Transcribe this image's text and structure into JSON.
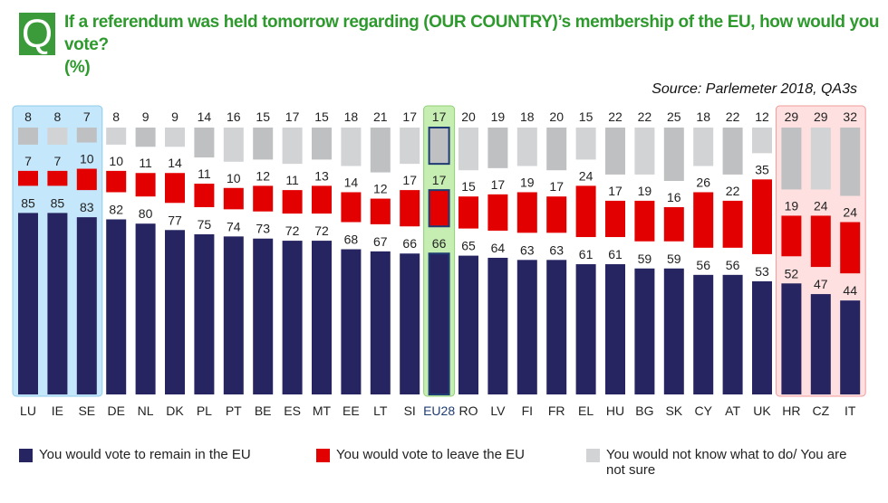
{
  "header": {
    "q_badge": "Q",
    "title_line1": "If a referendum was held tomorrow regarding (OUR COUNTRY)’s membership of the EU, how would you vote?",
    "title_line2": "(%)",
    "source": "Source: Parlemeter 2018, QA3s"
  },
  "colors": {
    "remain": "#262562",
    "leave": "#e30000",
    "unsure_dark": "#bfc0c2",
    "unsure_light": "#d1d3d4",
    "highlight_top": "#c4e7fb",
    "highlight_eu": "#c6edb2",
    "highlight_bottom": "#fde0df",
    "title_green": "#2e9a2e",
    "eu28_label": "#1f3b73"
  },
  "chart_data": {
    "type": "bar",
    "title": "If a referendum was held tomorrow regarding (OUR COUNTRY)’s membership of the EU, how would you vote? (%)",
    "xlabel": "",
    "ylabel": "%",
    "categories": [
      "LU",
      "IE",
      "SE",
      "DE",
      "NL",
      "DK",
      "PL",
      "PT",
      "BE",
      "ES",
      "MT",
      "EE",
      "LT",
      "SI",
      "EU28",
      "RO",
      "LV",
      "FI",
      "FR",
      "EL",
      "HU",
      "BG",
      "SK",
      "CY",
      "AT",
      "UK",
      "HR",
      "CZ",
      "IT"
    ],
    "series": [
      {
        "name": "You would vote to remain in the EU",
        "key": "remain",
        "values": [
          85,
          85,
          83,
          82,
          80,
          77,
          75,
          74,
          73,
          72,
          72,
          68,
          67,
          66,
          66,
          65,
          64,
          63,
          63,
          61,
          61,
          59,
          59,
          56,
          56,
          53,
          52,
          47,
          44
        ]
      },
      {
        "name": "You would vote to leave the EU",
        "key": "leave",
        "values": [
          7,
          7,
          10,
          10,
          11,
          14,
          11,
          10,
          12,
          11,
          13,
          14,
          12,
          17,
          17,
          15,
          17,
          19,
          17,
          24,
          17,
          19,
          16,
          26,
          22,
          35,
          19,
          24,
          24
        ]
      },
      {
        "name": "You would not know what to do/ You are not sure",
        "key": "unsure",
        "values": [
          8,
          8,
          7,
          8,
          9,
          9,
          14,
          16,
          15,
          17,
          15,
          18,
          21,
          17,
          17,
          20,
          19,
          18,
          20,
          15,
          22,
          22,
          25,
          18,
          22,
          12,
          29,
          29,
          32
        ]
      }
    ],
    "groups": [
      {
        "name": "top",
        "categories": [
          "LU",
          "IE",
          "SE"
        ]
      },
      {
        "name": "average",
        "categories": [
          "EU28"
        ]
      },
      {
        "name": "bottom",
        "categories": [
          "HR",
          "CZ",
          "IT"
        ]
      }
    ],
    "legend_position": "bottom",
    "grid": false
  },
  "legend": [
    {
      "label": "You would vote to remain in the EU",
      "key": "remain"
    },
    {
      "label": "You would vote to leave the EU",
      "key": "leave"
    },
    {
      "label": "You would not know what to do/ You are not sure",
      "key": "unsure"
    }
  ]
}
